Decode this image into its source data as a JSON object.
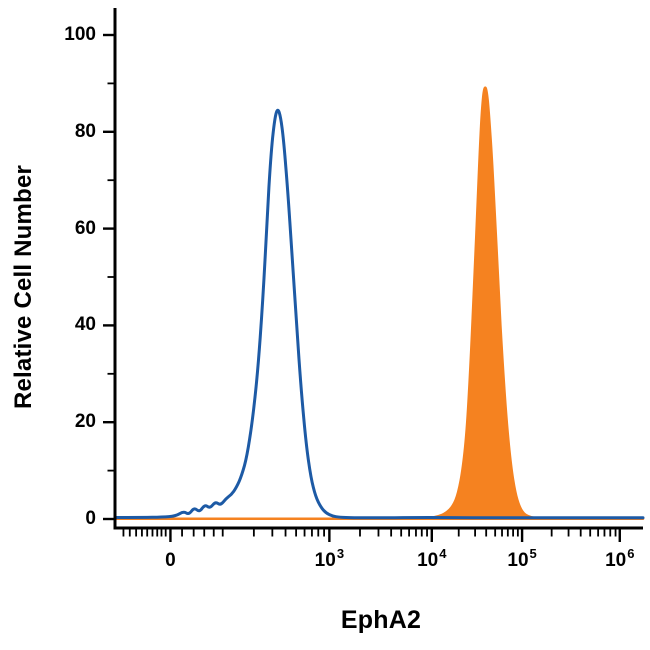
{
  "chart_data": {
    "type": "area",
    "title": "",
    "xlabel": "EphA2",
    "ylabel": "Relative Cell Number",
    "ylim": [
      0,
      105
    ],
    "grid": false,
    "legend": "none",
    "x_axis": {
      "scale": "biexponential-log",
      "major_ticks": [
        {
          "label": "0",
          "sup": "",
          "u": 0.105,
          "value": 0
        },
        {
          "label": "10",
          "sup": "3",
          "u": 0.406,
          "value": 1000
        },
        {
          "label": "10",
          "sup": "4",
          "u": 0.6,
          "value": 10000
        },
        {
          "label": "10",
          "sup": "5",
          "u": 0.771,
          "value": 100000
        },
        {
          "label": "10",
          "sup": "6",
          "u": 0.956,
          "value": 1000000
        }
      ],
      "minor_ticks_u": [
        0.016,
        0.028,
        0.04,
        0.051,
        0.061,
        0.071,
        0.08,
        0.088,
        0.096,
        0.127,
        0.149,
        0.169,
        0.187,
        0.204,
        0.263,
        0.298,
        0.323,
        0.343,
        0.359,
        0.373,
        0.385,
        0.396,
        0.464,
        0.499,
        0.523,
        0.542,
        0.557,
        0.57,
        0.581,
        0.591,
        0.651,
        0.682,
        0.703,
        0.72,
        0.733,
        0.744,
        0.754,
        0.763,
        0.827,
        0.859,
        0.882,
        0.9,
        0.915,
        0.927,
        0.938,
        0.948
      ]
    },
    "y_axis": {
      "major_ticks": [
        0,
        20,
        40,
        60,
        80,
        100
      ],
      "minor_ticks": [
        10,
        30,
        50,
        70,
        90
      ]
    },
    "series": [
      {
        "name": "orange-filled-histogram",
        "style": "filled",
        "color": "#f58220",
        "peak": {
          "x_value_approx": 40000,
          "height": 89.5
        },
        "points": [
          [
            0,
            0.05
          ],
          [
            0.4,
            0.05
          ],
          [
            0.5,
            0.08
          ],
          [
            0.56,
            0.1
          ],
          [
            0.595,
            0.2
          ],
          [
            0.612,
            0.5
          ],
          [
            0.627,
            1.2
          ],
          [
            0.64,
            2.6
          ],
          [
            0.65,
            5.2
          ],
          [
            0.659,
            10.5
          ],
          [
            0.667,
            19
          ],
          [
            0.674,
            33
          ],
          [
            0.681,
            50
          ],
          [
            0.687,
            66
          ],
          [
            0.692,
            78.5
          ],
          [
            0.696,
            86
          ],
          [
            0.7,
            89.5
          ],
          [
            0.704,
            88.5
          ],
          [
            0.708,
            84
          ],
          [
            0.713,
            76
          ],
          [
            0.719,
            64
          ],
          [
            0.726,
            48
          ],
          [
            0.734,
            32
          ],
          [
            0.742,
            19.5
          ],
          [
            0.75,
            10.8
          ],
          [
            0.758,
            5.4
          ],
          [
            0.766,
            2.5
          ],
          [
            0.774,
            1.1
          ],
          [
            0.783,
            0.5
          ],
          [
            0.795,
            0.2
          ],
          [
            0.81,
            0.1
          ],
          [
            0.85,
            0.05
          ],
          [
            1,
            0.05
          ]
        ]
      },
      {
        "name": "blue-outline-histogram",
        "style": "line",
        "color": "#1d5aa5",
        "peak": {
          "x_value_approx": 500,
          "height": 85
        },
        "points": [
          [
            0,
            0.3
          ],
          [
            0.05,
            0.3
          ],
          [
            0.09,
            0.4
          ],
          [
            0.115,
            0.6
          ],
          [
            0.13,
            1.6
          ],
          [
            0.14,
            0.9
          ],
          [
            0.15,
            2.4
          ],
          [
            0.16,
            1.4
          ],
          [
            0.17,
            3
          ],
          [
            0.18,
            2.2
          ],
          [
            0.19,
            3.6
          ],
          [
            0.2,
            2.8
          ],
          [
            0.21,
            4.2
          ],
          [
            0.22,
            5
          ],
          [
            0.23,
            6.5
          ],
          [
            0.24,
            9
          ],
          [
            0.25,
            13
          ],
          [
            0.26,
            20
          ],
          [
            0.27,
            30
          ],
          [
            0.28,
            45
          ],
          [
            0.288,
            62
          ],
          [
            0.295,
            75
          ],
          [
            0.302,
            82.5
          ],
          [
            0.308,
            85
          ],
          [
            0.314,
            83
          ],
          [
            0.32,
            77.5
          ],
          [
            0.327,
            68
          ],
          [
            0.335,
            55
          ],
          [
            0.344,
            40
          ],
          [
            0.353,
            26
          ],
          [
            0.362,
            15.5
          ],
          [
            0.371,
            8.5
          ],
          [
            0.38,
            4.6
          ],
          [
            0.39,
            2.4
          ],
          [
            0.4,
            1.2
          ],
          [
            0.412,
            0.6
          ],
          [
            0.425,
            0.35
          ],
          [
            0.45,
            0.25
          ],
          [
            0.5,
            0.25
          ],
          [
            0.56,
            0.3
          ],
          [
            0.63,
            0.3
          ],
          [
            0.72,
            0.25
          ],
          [
            0.82,
            0.25
          ],
          [
            0.92,
            0.25
          ],
          [
            1,
            0.25
          ]
        ]
      }
    ]
  }
}
